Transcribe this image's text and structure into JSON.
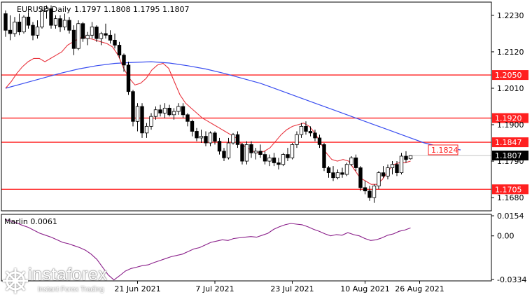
{
  "header": {
    "symbol_label": "EURUSD,Daily",
    "ohlc": "1.1797  1.1808  1.1795  1.1807"
  },
  "indicator": {
    "label": "Marlin 0.0061"
  },
  "logo": {
    "brand": "instaforex",
    "tagline": "Instant Forex Trading"
  },
  "colors": {
    "candle": "#000000",
    "ma_short": "#e8323c",
    "ma_long": "#3a4ef0",
    "level": "#ff2020",
    "indicator": "#8a1f8a",
    "grid": "#000000"
  },
  "chart_data": [
    {
      "type": "candlestick",
      "title": "EURUSD,Daily",
      "ylim": [
        1.164,
        1.227
      ],
      "x_tick_labels": [
        "21 Jun 2021",
        "7 Jul 2021",
        "23 Jul 2021",
        "10 Aug 2021",
        "26 Aug 2021"
      ],
      "y_tick_labels": [
        "1.2230",
        "1.2120",
        "1.2010",
        "1.1900",
        "1.1790",
        "1.1680"
      ],
      "y_ticks": [
        1.223,
        1.212,
        1.201,
        1.19,
        1.179,
        1.168
      ],
      "horizontal_levels": [
        {
          "value": 1.205,
          "label": "1.2050"
        },
        {
          "value": 1.192,
          "label": "1.1920"
        },
        {
          "value": 1.1847,
          "label": "1.1847"
        },
        {
          "value": 1.1705,
          "label": "1.1705"
        }
      ],
      "current_price": {
        "value": 1.1807,
        "label": "1.1807"
      },
      "ma_long_last": {
        "value": 1.1824,
        "label": "1.1824"
      },
      "candles": [
        [
          1.2235,
          1.2245,
          1.2165,
          1.2185
        ],
        [
          1.2185,
          1.223,
          1.2155,
          1.2175
        ],
        [
          1.2175,
          1.2225,
          1.2165,
          1.221
        ],
        [
          1.221,
          1.2235,
          1.217,
          1.218
        ],
        [
          1.218,
          1.223,
          1.2175,
          1.2225
        ],
        [
          1.2225,
          1.224,
          1.219,
          1.22
        ],
        [
          1.22,
          1.221,
          1.2155,
          1.217
        ],
        [
          1.217,
          1.2215,
          1.216,
          1.2195
        ],
        [
          1.2195,
          1.2255,
          1.219,
          1.2245
        ],
        [
          1.2245,
          1.226,
          1.222,
          1.225
        ],
        [
          1.225,
          1.226,
          1.219,
          1.22
        ],
        [
          1.22,
          1.223,
          1.219,
          1.222
        ],
        [
          1.222,
          1.223,
          1.218,
          1.2195
        ],
        [
          1.2195,
          1.2235,
          1.2185,
          1.2215
        ],
        [
          1.2215,
          1.2225,
          1.2175,
          1.2185
        ],
        [
          1.2185,
          1.22,
          1.211,
          1.213
        ],
        [
          1.213,
          1.2215,
          1.2125,
          1.2205
        ],
        [
          1.2205,
          1.221,
          1.215,
          1.216
        ],
        [
          1.216,
          1.218,
          1.214,
          1.217
        ],
        [
          1.217,
          1.221,
          1.216,
          1.2195
        ],
        [
          1.2195,
          1.22,
          1.215,
          1.216
        ],
        [
          1.216,
          1.218,
          1.214,
          1.2175
        ],
        [
          1.2175,
          1.2205,
          1.216,
          1.217
        ],
        [
          1.217,
          1.2185,
          1.2145,
          1.2155
        ],
        [
          1.2155,
          1.2175,
          1.213,
          1.214
        ],
        [
          1.214,
          1.215,
          1.21,
          1.211
        ],
        [
          1.211,
          1.2115,
          1.206,
          1.208
        ],
        [
          1.208,
          1.209,
          1.199,
          1.2
        ],
        [
          1.2,
          1.2005,
          1.1895,
          1.191
        ],
        [
          1.191,
          1.1965,
          1.188,
          1.1955
        ],
        [
          1.1955,
          1.1965,
          1.186,
          1.1875
        ],
        [
          1.1875,
          1.1905,
          1.186,
          1.1895
        ],
        [
          1.1895,
          1.1935,
          1.1885,
          1.1925
        ],
        [
          1.1925,
          1.1955,
          1.1915,
          1.1945
        ],
        [
          1.1945,
          1.196,
          1.1925,
          1.1935
        ],
        [
          1.1935,
          1.1965,
          1.192,
          1.195
        ],
        [
          1.195,
          1.196,
          1.1925,
          1.193
        ],
        [
          1.193,
          1.195,
          1.1915,
          1.194
        ],
        [
          1.194,
          1.1965,
          1.193,
          1.1955
        ],
        [
          1.1955,
          1.1965,
          1.192,
          1.193
        ],
        [
          1.193,
          1.1935,
          1.1895,
          1.191
        ],
        [
          1.191,
          1.1915,
          1.1865,
          1.188
        ],
        [
          1.188,
          1.189,
          1.185,
          1.186
        ],
        [
          1.186,
          1.1885,
          1.1845,
          1.1865
        ],
        [
          1.1865,
          1.188,
          1.1835,
          1.1845
        ],
        [
          1.1845,
          1.188,
          1.1835,
          1.1875
        ],
        [
          1.1875,
          1.188,
          1.184,
          1.185
        ],
        [
          1.185,
          1.186,
          1.181,
          1.182
        ],
        [
          1.182,
          1.183,
          1.179,
          1.18
        ],
        [
          1.18,
          1.186,
          1.1795,
          1.1845
        ],
        [
          1.1845,
          1.1875,
          1.184,
          1.187
        ],
        [
          1.187,
          1.188,
          1.183,
          1.184
        ],
        [
          1.184,
          1.1845,
          1.178,
          1.179
        ],
        [
          1.179,
          1.185,
          1.178,
          1.184
        ],
        [
          1.184,
          1.185,
          1.18,
          1.1815
        ],
        [
          1.1815,
          1.183,
          1.1795,
          1.182
        ],
        [
          1.182,
          1.184,
          1.18,
          1.181
        ],
        [
          1.181,
          1.182,
          1.178,
          1.179
        ],
        [
          1.179,
          1.181,
          1.1775,
          1.18
        ],
        [
          1.18,
          1.1815,
          1.1775,
          1.1785
        ],
        [
          1.1785,
          1.18,
          1.1765,
          1.178
        ],
        [
          1.178,
          1.1815,
          1.1775,
          1.181
        ],
        [
          1.181,
          1.183,
          1.179,
          1.18
        ],
        [
          1.18,
          1.1845,
          1.1795,
          1.184
        ],
        [
          1.184,
          1.188,
          1.183,
          1.187
        ],
        [
          1.187,
          1.1905,
          1.186,
          1.1895
        ],
        [
          1.1895,
          1.191,
          1.187,
          1.188
        ],
        [
          1.188,
          1.1895,
          1.1865,
          1.1875
        ],
        [
          1.1875,
          1.1885,
          1.185,
          1.186
        ],
        [
          1.186,
          1.187,
          1.183,
          1.184
        ],
        [
          1.184,
          1.1845,
          1.176,
          1.177
        ],
        [
          1.177,
          1.1775,
          1.174,
          1.1755
        ],
        [
          1.1755,
          1.1775,
          1.173,
          1.174
        ],
        [
          1.174,
          1.1765,
          1.1735,
          1.1755
        ],
        [
          1.1755,
          1.177,
          1.174,
          1.175
        ],
        [
          1.175,
          1.1785,
          1.1745,
          1.178
        ],
        [
          1.178,
          1.1805,
          1.1775,
          1.18
        ],
        [
          1.18,
          1.181,
          1.176,
          1.177
        ],
        [
          1.177,
          1.1775,
          1.17,
          1.171
        ],
        [
          1.171,
          1.173,
          1.169,
          1.17
        ],
        [
          1.17,
          1.1715,
          1.167,
          1.168
        ],
        [
          1.168,
          1.172,
          1.1664,
          1.1715
        ],
        [
          1.1715,
          1.176,
          1.1705,
          1.1755
        ],
        [
          1.1755,
          1.1775,
          1.174,
          1.1745
        ],
        [
          1.1745,
          1.178,
          1.1735,
          1.177
        ],
        [
          1.177,
          1.179,
          1.175,
          1.178
        ],
        [
          1.178,
          1.179,
          1.1745,
          1.1755
        ],
        [
          1.1755,
          1.1815,
          1.175,
          1.1805
        ],
        [
          1.1805,
          1.182,
          1.1785,
          1.1795
        ],
        [
          1.1797,
          1.1808,
          1.1795,
          1.1807
        ]
      ],
      "ma_short": [
        1.201,
        1.203,
        1.2055,
        1.2075,
        1.209,
        1.21,
        1.21,
        1.209,
        1.21,
        1.211,
        1.212,
        1.214,
        1.215,
        1.216,
        1.2165,
        1.216,
        1.2155,
        1.215,
        1.2145,
        1.2135,
        1.211,
        1.207,
        1.204,
        1.202,
        1.2025,
        1.204,
        1.2065,
        1.208,
        1.2085,
        1.207,
        1.203,
        1.199,
        1.1965,
        1.195,
        1.1935,
        1.192,
        1.191,
        1.19,
        1.189,
        1.188,
        1.187,
        1.186,
        1.184,
        1.183,
        1.182,
        1.1815,
        1.182,
        1.183,
        1.185,
        1.187,
        1.1885,
        1.1895,
        1.19,
        1.1905,
        1.1895,
        1.1875,
        1.1845,
        1.1815,
        1.1795,
        1.179,
        1.1795,
        1.179,
        1.1765,
        1.174,
        1.173,
        1.172,
        1.172,
        1.1735,
        1.176,
        1.178,
        1.1785,
        1.1785,
        1.179
      ],
      "ma_short_start": 0,
      "ma_long": [
        1.201,
        1.2025,
        1.204,
        1.2055,
        1.2068,
        1.2078,
        1.2085,
        1.2088,
        1.209,
        1.2086,
        1.2078,
        1.2068,
        1.2055,
        1.204,
        1.2025,
        1.2005,
        1.1985,
        1.1965,
        1.1945,
        1.1925,
        1.1905,
        1.1885,
        1.1865,
        1.1845,
        1.1832,
        1.1824
      ],
      "ma_long_step": 4
    },
    {
      "type": "line",
      "title": "Marlin 0.0061",
      "ylim": [
        -0.0345,
        0.0165
      ],
      "y_tick_labels": [
        "0.0154",
        "0.00",
        "-0.0334"
      ],
      "y_ticks": [
        0.0154,
        0.0,
        -0.0334
      ],
      "values": [
        0.0125,
        0.0112,
        0.0098,
        0.008,
        0.0065,
        0.0042,
        0.002,
        0.0005,
        -0.001,
        -0.003,
        -0.005,
        -0.006,
        -0.0075,
        -0.009,
        -0.011,
        -0.014,
        -0.018,
        -0.024,
        -0.03,
        -0.0338,
        -0.0305,
        -0.027,
        -0.025,
        -0.024,
        -0.0228,
        -0.0222,
        -0.0205,
        -0.019,
        -0.0175,
        -0.016,
        -0.015,
        -0.014,
        -0.012,
        -0.01,
        -0.009,
        -0.007,
        -0.005,
        -0.004,
        -0.003,
        -0.0035,
        -0.002,
        -0.0015,
        -0.001,
        -0.0005,
        -0.001,
        0.0005,
        0.002,
        0.005,
        0.007,
        0.0085,
        0.0095,
        0.009,
        0.0085,
        0.007,
        0.005,
        0.0035,
        0.0015,
        0.0,
        0.001,
        0.0005,
        0.0025,
        0.001,
        0.0,
        -0.002,
        -0.0035,
        -0.003,
        -0.0015,
        0.0005,
        0.0015,
        0.0035,
        0.0045,
        0.0061
      ]
    }
  ]
}
